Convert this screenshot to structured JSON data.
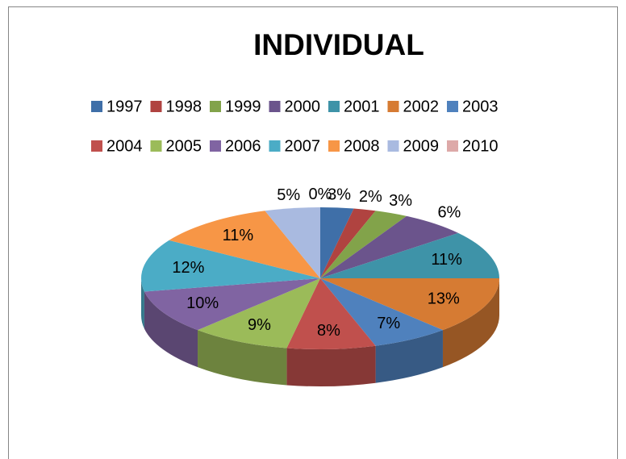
{
  "chart_data": {
    "type": "pie3d",
    "title": "INDIVIDUAL",
    "categories": [
      "1997",
      "1998",
      "1999",
      "2000",
      "2001",
      "2002",
      "2003",
      "2004",
      "2005",
      "2006",
      "2007",
      "2008",
      "2009",
      "2010"
    ],
    "values": [
      3,
      2,
      3,
      6,
      11,
      13,
      7,
      8,
      9,
      10,
      12,
      11,
      5,
      0
    ],
    "value_labels": [
      "3%",
      "2%",
      "3%",
      "6%",
      "11%",
      "13%",
      "7%",
      "8%",
      "9%",
      "10%",
      "12%",
      "11%",
      "5%",
      "0%"
    ],
    "colors": [
      "#3F6FA8",
      "#B04340",
      "#82A34A",
      "#6B548C",
      "#3E93A8",
      "#D67B33",
      "#4F81BD",
      "#C0504D",
      "#9BBB59",
      "#8064A2",
      "#4BACC6",
      "#F79646",
      "#A9BAE0",
      "#DDA9A8"
    ],
    "legend": "top"
  }
}
